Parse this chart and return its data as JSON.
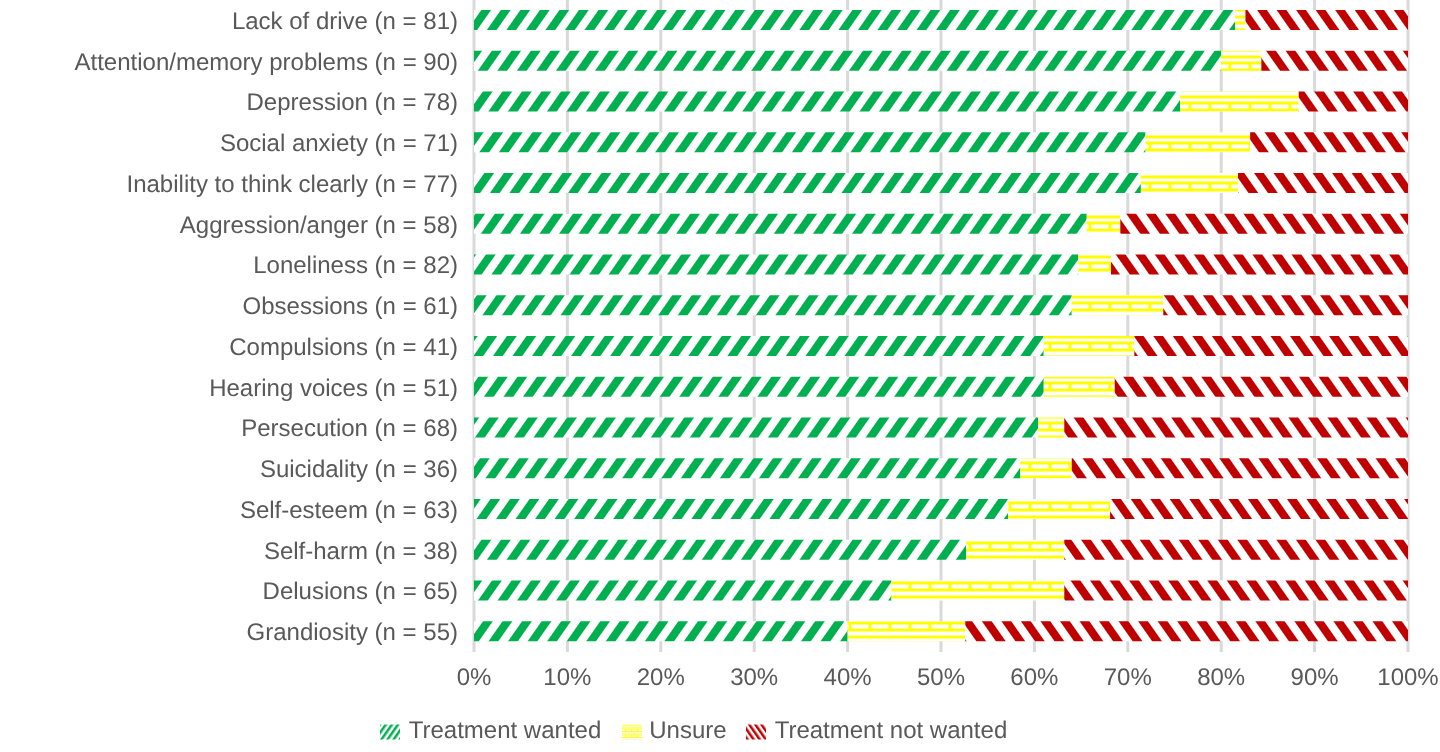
{
  "chart_data": {
    "type": "bar",
    "orientation": "horizontal",
    "stacked": true,
    "categories": [
      "Lack of drive (n = 81)",
      "Attention/memory problems (n = 90)",
      "Depression (n = 78)",
      "Social anxiety (n = 71)",
      "Inability to think clearly (n = 77)",
      "Aggression/anger (n = 58)",
      "Loneliness (n = 82)",
      "Obsessions (n = 61)",
      "Compulsions (n = 41)",
      "Hearing voices (n = 51)",
      "Persecution (n = 68)",
      "Suicidality (n = 36)",
      "Self-esteem (n = 63)",
      "Self-harm (n = 38)",
      "Delusions (n = 65)",
      "Grandiosity (n = 55)"
    ],
    "series": [
      {
        "name": "Treatment wanted",
        "color": "#00b050",
        "values": [
          81.5,
          80,
          75.6,
          71.9,
          71.4,
          65.6,
          64.7,
          64,
          61,
          61,
          60.4,
          58.5,
          57.2,
          52.7,
          44.7,
          40
        ]
      },
      {
        "name": "Unsure",
        "color": "#ffff00",
        "values": [
          1.1,
          4.3,
          12.7,
          11.2,
          10.4,
          3.6,
          3.5,
          9.8,
          9.7,
          7.6,
          2.8,
          5.5,
          10.9,
          10.5,
          18.5,
          12.6
        ]
      },
      {
        "name": "Treatment not wanted",
        "color": "#c00000",
        "values": [
          17.4,
          15.7,
          11.7,
          16.9,
          18.2,
          30.8,
          31.8,
          26.2,
          29.3,
          31.4,
          36.8,
          36,
          31.9,
          36.8,
          36.8,
          47.4
        ]
      }
    ],
    "xlim": [
      0,
      100
    ],
    "xticks": [
      {
        "value": 0,
        "label": "0%"
      },
      {
        "value": 10,
        "label": "10%"
      },
      {
        "value": 20,
        "label": "20%"
      },
      {
        "value": 30,
        "label": "30%"
      },
      {
        "value": 40,
        "label": "40%"
      },
      {
        "value": 50,
        "label": "50%"
      },
      {
        "value": 60,
        "label": "60%"
      },
      {
        "value": 70,
        "label": "70%"
      },
      {
        "value": 80,
        "label": "80%"
      },
      {
        "value": 90,
        "label": "90%"
      },
      {
        "value": 100,
        "label": "100%"
      }
    ],
    "grid": "x",
    "legend": "bottom"
  }
}
